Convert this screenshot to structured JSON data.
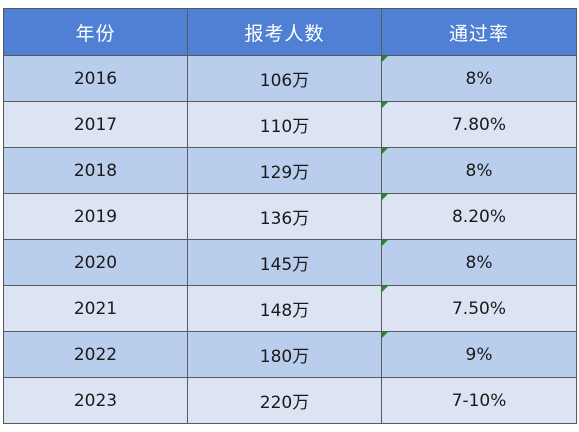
{
  "table": {
    "headers": [
      "年份",
      "报考人数",
      "通过率"
    ],
    "rows": [
      {
        "year": "2016",
        "count": "106万",
        "rate": "8%"
      },
      {
        "year": "2017",
        "count": "110万",
        "rate": "7.80%"
      },
      {
        "year": "2018",
        "count": "129万",
        "rate": "8%"
      },
      {
        "year": "2019",
        "count": "136万",
        "rate": "8.20%"
      },
      {
        "year": "2020",
        "count": "145万",
        "rate": "8%"
      },
      {
        "year": "2021",
        "count": "148万",
        "rate": "7.50%"
      },
      {
        "year": "2022",
        "count": "180万",
        "rate": "9%"
      },
      {
        "year": "2023",
        "count": "220万",
        "rate": "7-10%"
      }
    ]
  },
  "colors": {
    "header_bg": "#4f80d3",
    "row_dark": "#b9cdec",
    "row_light": "#dce4f3",
    "flag": "#1f8a2a"
  }
}
